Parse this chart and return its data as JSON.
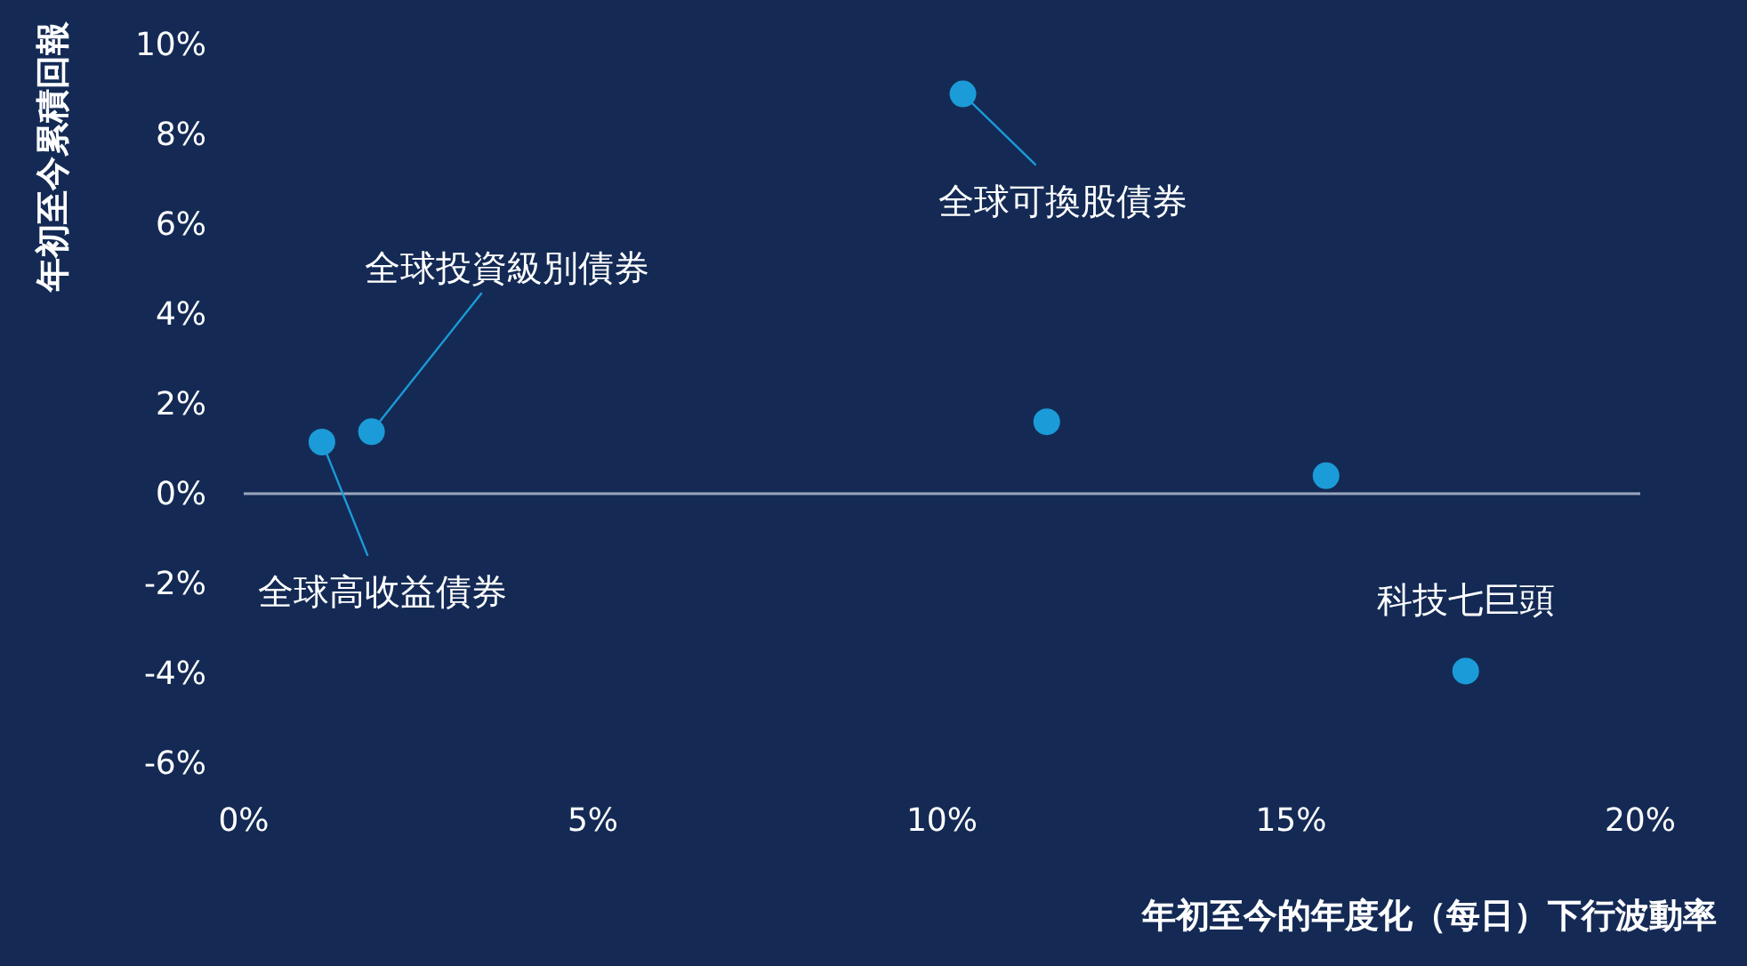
{
  "chart_data": {
    "type": "scatter",
    "xlabel": "年初至今的年度化（每日）下行波動率",
    "ylabel": "年初至今累積回報",
    "series": [
      {
        "color": "#1b9bd7",
        "x": [
          1.12,
          1.83,
          10.3,
          11.5,
          15.5,
          17.5
        ],
        "values": [
          1.15,
          1.38,
          8.9,
          1.6,
          0.4,
          -3.95
        ]
      }
    ],
    "annotations": [
      {
        "text": "全球高收益債券",
        "x": 1.12,
        "y": 1.15
      },
      {
        "text": "全球投資級別債券",
        "x": 1.83,
        "y": 1.38
      },
      {
        "text": "全球可換股債券",
        "x": 10.3,
        "y": 8.9
      },
      {
        "text": "科技七巨頭",
        "x": 17.5,
        "y": -3.95
      }
    ],
    "xlim": [
      0,
      20
    ],
    "ylim": [
      -6,
      10
    ],
    "xticks": [
      {
        "value": 0,
        "label": "0%"
      },
      {
        "value": 5,
        "label": "5%"
      },
      {
        "value": 10,
        "label": "10%"
      },
      {
        "value": 15,
        "label": "15%"
      },
      {
        "value": 20,
        "label": "20%"
      }
    ],
    "yticks": [
      {
        "value": -6,
        "label": "-6%"
      },
      {
        "value": -4,
        "label": "-4%"
      },
      {
        "value": -2,
        "label": "-2%"
      },
      {
        "value": 0,
        "label": "0%"
      },
      {
        "value": 2,
        "label": "2%"
      },
      {
        "value": 4,
        "label": "4%"
      },
      {
        "value": 6,
        "label": "6%"
      },
      {
        "value": 8,
        "label": "8%"
      },
      {
        "value": 10,
        "label": "10%"
      }
    ],
    "ref_lines": [
      {
        "axis": "y",
        "value": 0,
        "color": "#9aa6bd"
      }
    ],
    "grid": false,
    "marker": "circle"
  }
}
